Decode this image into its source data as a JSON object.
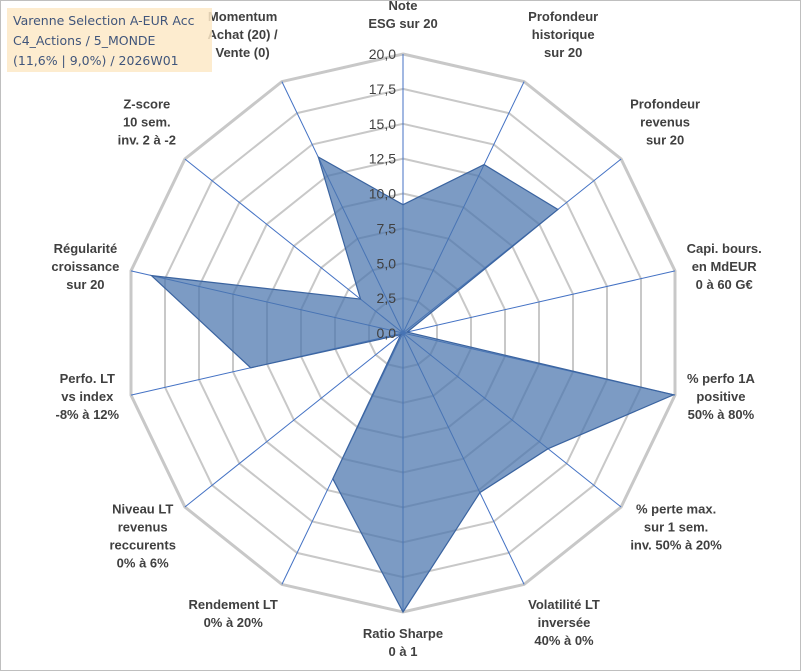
{
  "title_box": {
    "line1": "Varenne Selection A-EUR Acc",
    "line2": "C4_Actions / 5_MONDE",
    "line3": "(11,6% | 9,0%) / 2026W01"
  },
  "chart_data": {
    "type": "radar",
    "title": "Varenne Selection A-EUR Acc",
    "range": [
      0,
      20
    ],
    "ticks": [
      "0,0",
      "2,5",
      "5,0",
      "7,5",
      "10,0",
      "12,5",
      "15,0",
      "17,5",
      "20,0"
    ],
    "axes": [
      {
        "label": [
          "Note",
          "ESG sur 20"
        ],
        "value": 9.2
      },
      {
        "label": [
          "Profondeur",
          "historique",
          "sur 20"
        ],
        "value": 13.4
      },
      {
        "label": [
          "Profondeur",
          "revenus",
          "sur 20"
        ],
        "value": 14.2
      },
      {
        "label": [
          "Capi. bours.",
          "en MdEUR",
          "0 à 60 G€"
        ],
        "value": 0.3
      },
      {
        "label": [
          "% perfo 1A",
          "positive",
          "50% à 80%"
        ],
        "value": 19.9
      },
      {
        "label": [
          "% perte max.",
          "sur 1 sem.",
          "inv. 50% à 20%"
        ],
        "value": 13.3
      },
      {
        "label": [
          "Volatilité LT",
          "inversée",
          "40% à 0%"
        ],
        "value": 12.7
      },
      {
        "label": [
          "Ratio Sharpe",
          "0 à 1"
        ],
        "value": 20.0
      },
      {
        "label": [
          "Rendement LT",
          "0% à 20%"
        ],
        "value": 11.6
      },
      {
        "label": [
          "Niveau LT",
          "revenus",
          "reccurents",
          "0% à 6%"
        ],
        "value": 0.2
      },
      {
        "label": [
          "Perfo. LT",
          "vs index",
          "-8% à 12%"
        ],
        "value": 11.2
      },
      {
        "label": [
          "Régularité",
          "croissance",
          "sur 20"
        ],
        "value": 18.5
      },
      {
        "label": [
          "Z-score",
          "10 sem.",
          "inv. 2 à -2"
        ],
        "value": 3.9
      },
      {
        "label": [
          "Momentum",
          "Achat (20) /",
          "Vente (0)"
        ],
        "value": 14.0
      }
    ],
    "series": [
      {
        "name": "Varenne Selection A-EUR Acc",
        "color": "#4a74ad"
      }
    ],
    "colors": {
      "grid": "#c8c8c8",
      "spoke": "#4472c4",
      "fill": "#4a74ad",
      "stroke": "#3b64a0"
    }
  }
}
